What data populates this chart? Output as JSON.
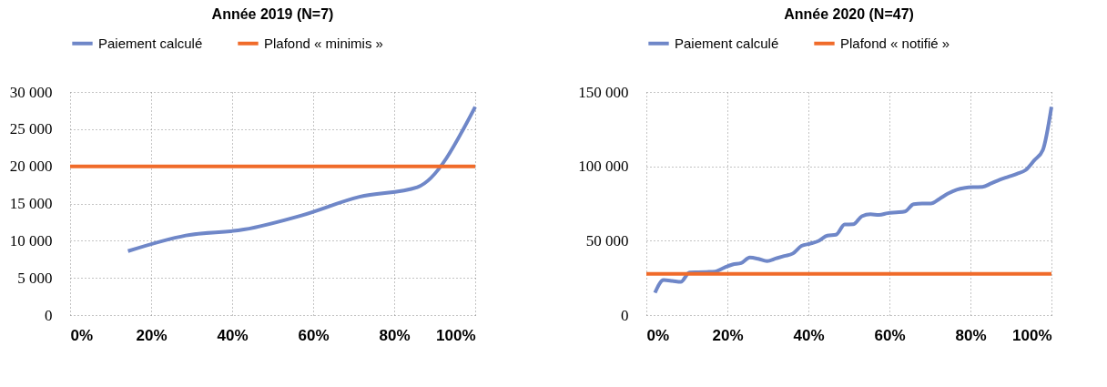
{
  "chart_data": [
    {
      "type": "line",
      "title": "Année 2019 (N=7)",
      "legend": "top",
      "grid": true,
      "xlim": [
        0,
        100
      ],
      "xticks": [
        {
          "value": 0,
          "label": "0%"
        },
        {
          "value": 20,
          "label": "20%"
        },
        {
          "value": 40,
          "label": "40%"
        },
        {
          "value": 60,
          "label": "60%"
        },
        {
          "value": 80,
          "label": "80%"
        },
        {
          "value": 100,
          "label": "100%"
        }
      ],
      "ylim": [
        0,
        30000
      ],
      "yticks": [
        0,
        {
          "value": 5000,
          "label": "5 000"
        },
        {
          "value": 10000,
          "label": "10 000"
        },
        {
          "value": 15000,
          "label": "15 000"
        },
        {
          "value": 20000,
          "label": "20 000"
        },
        {
          "value": 25000,
          "label": "25 000"
        },
        {
          "value": 30000,
          "label": "30 000"
        }
      ],
      "series": [
        {
          "name": "Paiement calculé",
          "color": "#6f87c8",
          "x": [
            14.29,
            28.57,
            42.86,
            57.14,
            71.43,
            85.71,
            100
          ],
          "values": [
            8600,
            10700,
            11500,
            13400,
            15900,
            17200,
            28000
          ]
        },
        {
          "name": "Plafond « minimis »",
          "color": "#f06b2a",
          "x": [
            0,
            100
          ],
          "values": [
            20000,
            20000
          ]
        }
      ]
    },
    {
      "type": "line",
      "title": "Année 2020 (N=47)",
      "legend": "top",
      "grid": true,
      "xlim": [
        0,
        100
      ],
      "xticks": [
        {
          "value": 0,
          "label": "0%"
        },
        {
          "value": 20,
          "label": "20%"
        },
        {
          "value": 40,
          "label": "40%"
        },
        {
          "value": 60,
          "label": "60%"
        },
        {
          "value": 80,
          "label": "80%"
        },
        {
          "value": 100,
          "label": "100%"
        }
      ],
      "ylim": [
        0,
        150000
      ],
      "yticks": [
        0,
        {
          "value": 50000,
          "label": "50 000"
        },
        {
          "value": 100000,
          "label": "100 000"
        },
        {
          "value": 150000,
          "label": "150 000"
        }
      ],
      "series": [
        {
          "name": "Paiement calculé",
          "color": "#6f87c8",
          "x": [
            2.13,
            4.26,
            6.38,
            8.51,
            10.64,
            12.77,
            14.89,
            17.02,
            19.15,
            21.28,
            23.4,
            25.53,
            27.66,
            29.79,
            31.91,
            34.04,
            36.17,
            38.3,
            40.43,
            42.55,
            44.68,
            46.81,
            48.94,
            51.06,
            53.19,
            55.32,
            57.45,
            59.57,
            61.7,
            63.83,
            65.96,
            68.09,
            70.21,
            72.34,
            74.47,
            76.6,
            78.72,
            80.85,
            82.98,
            85.11,
            87.23,
            89.36,
            91.49,
            93.62,
            95.74,
            97.87,
            100
          ],
          "values": [
            15000,
            23500,
            23000,
            22300,
            28600,
            28800,
            29000,
            29300,
            31800,
            34000,
            35000,
            38700,
            37800,
            36300,
            38000,
            39700,
            41400,
            46500,
            48000,
            49900,
            53400,
            54000,
            60900,
            61000,
            66400,
            67800,
            67300,
            68500,
            69000,
            69600,
            74500,
            75000,
            75000,
            78100,
            81700,
            84300,
            85500,
            86000,
            86200,
            88500,
            91000,
            93000,
            95000,
            97500,
            104000,
            111000,
            140000
          ]
        },
        {
          "name": "Plafond « notifié »",
          "color": "#f06b2a",
          "x": [
            0,
            100
          ],
          "values": [
            27700,
            27700
          ]
        }
      ]
    }
  ]
}
